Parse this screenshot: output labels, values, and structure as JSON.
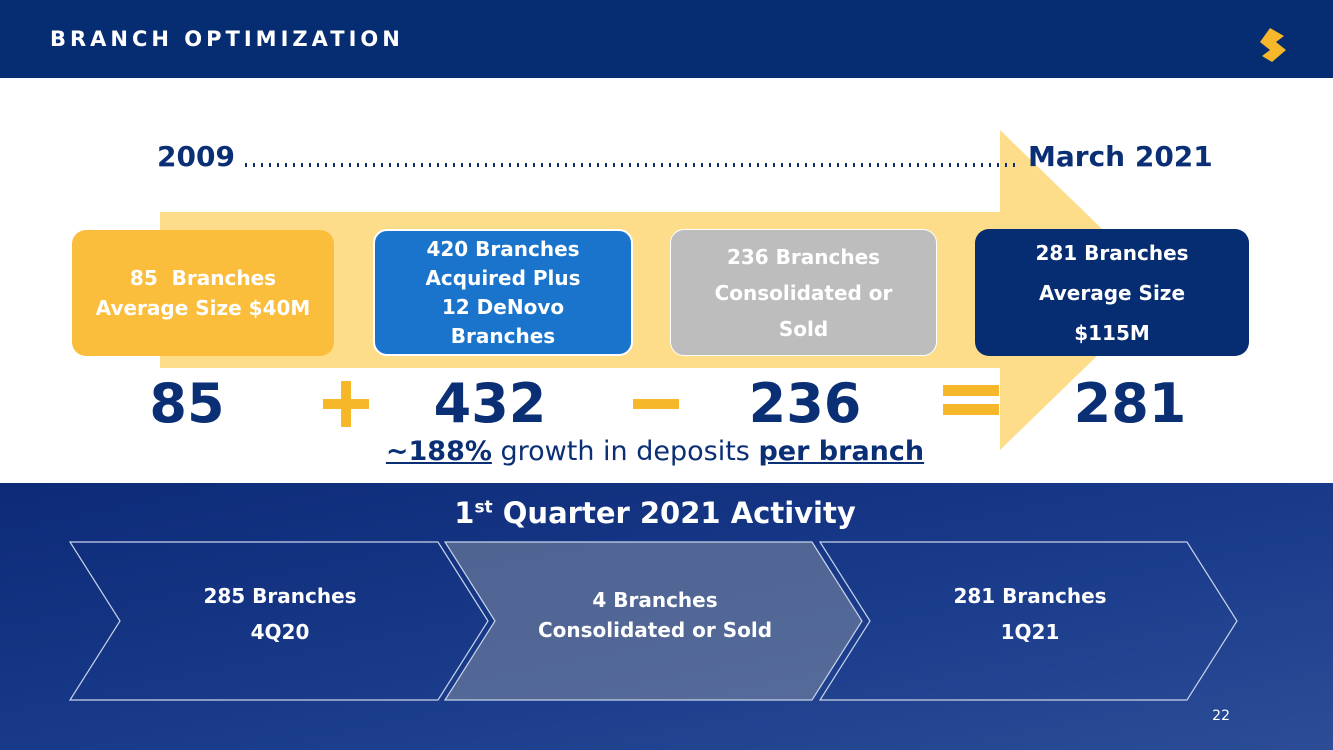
{
  "header": {
    "title": "BRANCH OPTIMIZATION"
  },
  "timeline": {
    "start": "2009",
    "end": "March 2021"
  },
  "boxes": [
    {
      "lines": [
        "85  Branches",
        "Average Size $40M"
      ]
    },
    {
      "lines": [
        "420 Branches",
        "Acquired Plus",
        "12 DeNovo",
        "Branches"
      ]
    },
    {
      "lines": [
        "236 Branches",
        "Consolidated or",
        "Sold"
      ]
    },
    {
      "lines": [
        "281 Branches",
        "Average Size",
        "$115M"
      ]
    }
  ],
  "equation": {
    "terms": [
      "85",
      "432",
      "236",
      "281"
    ]
  },
  "growth": {
    "figure": "~188%",
    "middle": " growth in deposits ",
    "emphasis": "per branch"
  },
  "activity": {
    "title_number": "1",
    "title_suffix": "st",
    "title_rest": " Quarter 2021 Activity",
    "steps": [
      {
        "lines": [
          "285 Branches",
          "4Q20"
        ]
      },
      {
        "lines": [
          "4 Branches",
          "Consolidated or Sold"
        ]
      },
      {
        "lines": [
          "281 Branches",
          "1Q21"
        ]
      }
    ]
  },
  "page_number": "22"
}
